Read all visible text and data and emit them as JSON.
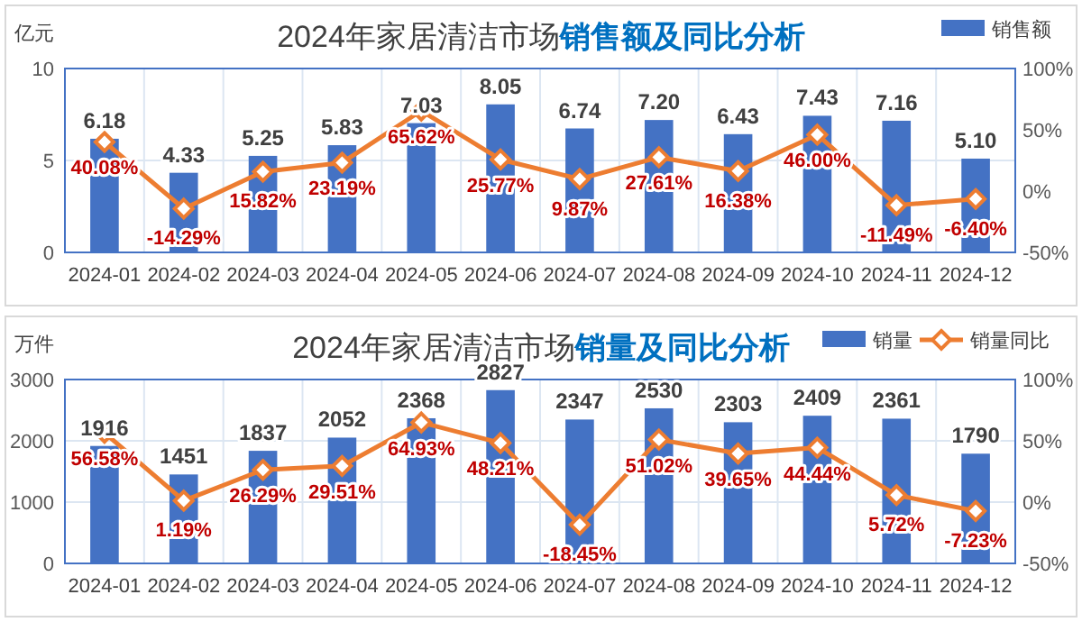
{
  "chart_data": [
    {
      "type": "bar",
      "title": "2024年家居清洁市场",
      "subtitle": "销售额及同比分析",
      "ylabel": "亿元",
      "categories": [
        "2024-01",
        "2024-02",
        "2024-03",
        "2024-04",
        "2024-05",
        "2024-06",
        "2024-07",
        "2024-08",
        "2024-09",
        "2024-10",
        "2024-11",
        "2024-12"
      ],
      "series": [
        {
          "name": "销售额",
          "color": "#4472c4",
          "values": [
            6.18,
            4.33,
            5.25,
            5.83,
            7.03,
            8.05,
            6.74,
            7.2,
            6.43,
            7.43,
            7.16,
            5.1
          ],
          "value_labels": [
            "6.18",
            "4.33",
            "5.25",
            "5.83",
            "7.03",
            "8.05",
            "6.74",
            "7.20",
            "6.43",
            "7.43",
            "7.16",
            "5.10"
          ]
        },
        {
          "type": "line",
          "axis": "y2",
          "color": "#ed7d31",
          "values": [
            40.08,
            -14.29,
            15.82,
            23.19,
            65.62,
            25.77,
            9.87,
            27.61,
            16.38,
            46.0,
            -11.49,
            -6.4
          ],
          "value_labels": [
            "40.08%",
            "-14.29%",
            "15.82%",
            "23.19%",
            "65.62%",
            "25.77%",
            "9.87%",
            "27.61%",
            "16.38%",
            "46.00%",
            "-11.49%",
            "-6.40%"
          ]
        }
      ],
      "ylim": [
        0,
        10
      ],
      "yticks": [
        0,
        5,
        10
      ],
      "y2lim": [
        -50,
        100
      ],
      "y2ticks": [
        {
          "value": -50,
          "label": "-50%"
        },
        {
          "value": 0,
          "label": "0%"
        },
        {
          "value": 50,
          "label": "50%"
        },
        {
          "value": 100,
          "label": "100%"
        }
      ],
      "grid": true,
      "legend": "top right",
      "marker": "diamond"
    },
    {
      "type": "bar",
      "title": "2024年家居清洁市场",
      "subtitle": "销量及同比分析",
      "ylabel": "万件",
      "categories": [
        "2024-01",
        "2024-02",
        "2024-03",
        "2024-04",
        "2024-05",
        "2024-06",
        "2024-07",
        "2024-08",
        "2024-09",
        "2024-10",
        "2024-11",
        "2024-12"
      ],
      "series": [
        {
          "name": "销量",
          "color": "#4472c4",
          "values": [
            1916,
            1451,
            1837,
            2052,
            2368,
            2827,
            2347,
            2530,
            2303,
            2409,
            2361,
            1790
          ],
          "value_labels": [
            "1916",
            "1451",
            "1837",
            "2052",
            "2368",
            "2827",
            "2347",
            "2530",
            "2303",
            "2409",
            "2361",
            "1790"
          ]
        },
        {
          "name": "销量同比",
          "type": "line",
          "axis": "y2",
          "color": "#ed7d31",
          "values": [
            56.58,
            1.19,
            26.29,
            29.51,
            64.93,
            48.21,
            -18.45,
            51.02,
            39.65,
            44.44,
            5.72,
            -7.23
          ],
          "value_labels": [
            "56.58%",
            "1.19%",
            "26.29%",
            "29.51%",
            "64.93%",
            "48.21%",
            "-18.45%",
            "51.02%",
            "39.65%",
            "44.44%",
            "5.72%",
            "-7.23%"
          ]
        }
      ],
      "ylim": [
        0,
        3000
      ],
      "yticks": [
        0,
        1000,
        2000,
        3000
      ],
      "y2lim": [
        -50,
        100
      ],
      "y2ticks": [
        {
          "value": -50,
          "label": "-50%"
        },
        {
          "value": 0,
          "label": "0%"
        },
        {
          "value": 50,
          "label": "50%"
        },
        {
          "value": 100,
          "label": "100%"
        }
      ],
      "grid": true,
      "legend": "top right",
      "marker": "diamond"
    }
  ]
}
